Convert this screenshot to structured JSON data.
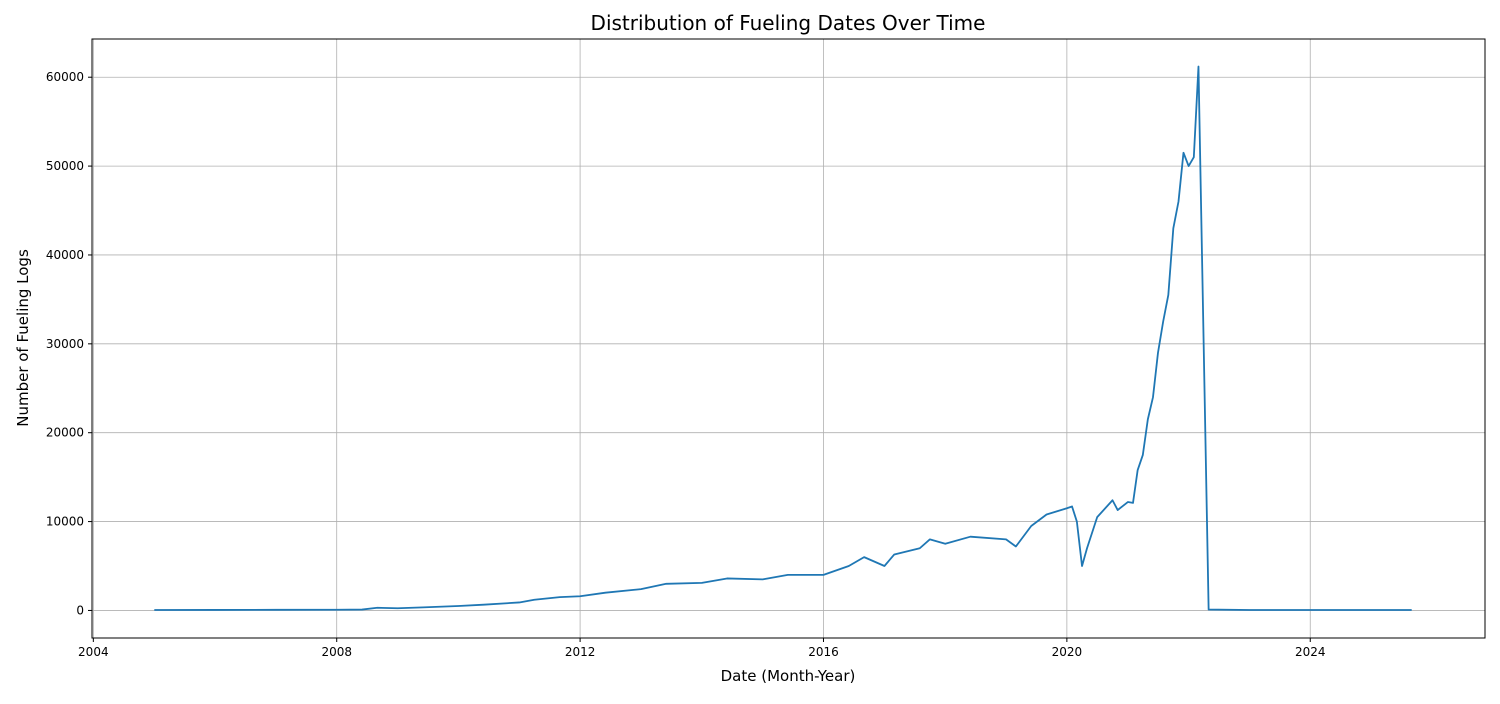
{
  "chart_data": {
    "type": "line",
    "title": "Distribution of Fueling Dates Over Time",
    "xlabel": "Date (Month-Year)",
    "ylabel": "Number of Fueling Logs",
    "xlim": [
      "2003-12-24",
      "2026-11-15"
    ],
    "ylim": [
      -3100,
      64300
    ],
    "grid": true,
    "line_color": "#1f77b4",
    "x_ticks": [
      {
        "value": "2004-01-01",
        "label": "2004"
      },
      {
        "value": "2008-01-01",
        "label": "2008"
      },
      {
        "value": "2012-01-01",
        "label": "2012"
      },
      {
        "value": "2016-01-01",
        "label": "2016"
      },
      {
        "value": "2020-01-01",
        "label": "2020"
      },
      {
        "value": "2024-01-01",
        "label": "2024"
      }
    ],
    "y_ticks": [
      {
        "value": 0,
        "label": "0"
      },
      {
        "value": 10000,
        "label": "10000"
      },
      {
        "value": 20000,
        "label": "20000"
      },
      {
        "value": 30000,
        "label": "30000"
      },
      {
        "value": 40000,
        "label": "40000"
      },
      {
        "value": 50000,
        "label": "50000"
      },
      {
        "value": 60000,
        "label": "60000"
      }
    ],
    "series": [
      {
        "points": [
          [
            "2005-01-01",
            50
          ],
          [
            "2006-01-01",
            60
          ],
          [
            "2007-01-01",
            70
          ],
          [
            "2008-01-01",
            80
          ],
          [
            "2008-06-01",
            100
          ],
          [
            "2008-09-01",
            300
          ],
          [
            "2009-01-01",
            250
          ],
          [
            "2009-06-01",
            350
          ],
          [
            "2010-01-01",
            500
          ],
          [
            "2010-06-01",
            650
          ],
          [
            "2011-01-01",
            900
          ],
          [
            "2011-04-01",
            1200
          ],
          [
            "2011-09-01",
            1500
          ],
          [
            "2012-01-01",
            1600
          ],
          [
            "2012-06-01",
            2000
          ],
          [
            "2013-01-01",
            2400
          ],
          [
            "2013-06-01",
            3000
          ],
          [
            "2014-01-01",
            3100
          ],
          [
            "2014-06-01",
            3600
          ],
          [
            "2015-01-01",
            3500
          ],
          [
            "2015-06-01",
            4000
          ],
          [
            "2016-01-01",
            4000
          ],
          [
            "2016-06-01",
            5000
          ],
          [
            "2016-09-01",
            6000
          ],
          [
            "2017-01-01",
            5000
          ],
          [
            "2017-03-01",
            6300
          ],
          [
            "2017-08-01",
            7000
          ],
          [
            "2017-10-01",
            8000
          ],
          [
            "2018-01-01",
            7500
          ],
          [
            "2018-06-01",
            8300
          ],
          [
            "2019-01-01",
            8000
          ],
          [
            "2019-03-01",
            7200
          ],
          [
            "2019-06-01",
            9500
          ],
          [
            "2019-09-01",
            10800
          ],
          [
            "2020-01-01",
            11500
          ],
          [
            "2020-02-01",
            11700
          ],
          [
            "2020-03-01",
            10000
          ],
          [
            "2020-04-01",
            5000
          ],
          [
            "2020-05-01",
            7000
          ],
          [
            "2020-07-01",
            10500
          ],
          [
            "2020-10-01",
            12400
          ],
          [
            "2020-11-01",
            11300
          ],
          [
            "2021-01-01",
            12200
          ],
          [
            "2021-02-01",
            12100
          ],
          [
            "2021-03-01",
            15800
          ],
          [
            "2021-04-01",
            17500
          ],
          [
            "2021-05-01",
            21500
          ],
          [
            "2021-06-01",
            24000
          ],
          [
            "2021-07-01",
            29000
          ],
          [
            "2021-08-01",
            32500
          ],
          [
            "2021-09-01",
            35500
          ],
          [
            "2021-10-01",
            43000
          ],
          [
            "2021-11-01",
            46000
          ],
          [
            "2021-12-01",
            51500
          ],
          [
            "2022-01-01",
            50000
          ],
          [
            "2022-02-01",
            51000
          ],
          [
            "2022-03-01",
            61200
          ],
          [
            "2022-05-01",
            100
          ],
          [
            "2023-01-01",
            50
          ],
          [
            "2024-01-01",
            50
          ],
          [
            "2025-09-01",
            50
          ]
        ]
      }
    ]
  }
}
